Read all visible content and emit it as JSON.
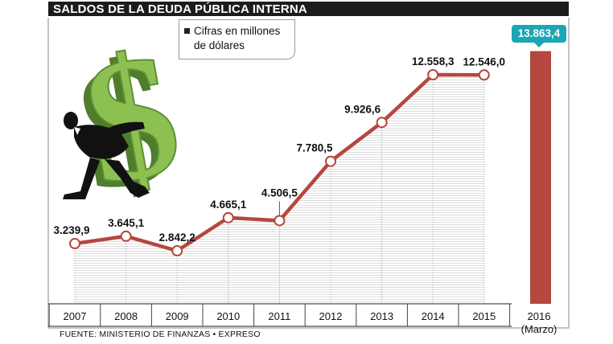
{
  "chart_data": {
    "type": "line",
    "title": "SALDOS DE LA DEUDA PÚBLICA INTERNA",
    "legend": "Cifras en millones de dólares",
    "source": "FUENTE: MINISTERIO DE FINANZAS  •  EXPRESO",
    "categories": [
      "2007",
      "2008",
      "2009",
      "2010",
      "2011",
      "2012",
      "2013",
      "2014",
      "2015"
    ],
    "values": [
      3239.9,
      3645.1,
      2842.2,
      4665.1,
      4506.5,
      7780.5,
      9926.6,
      12558.3,
      12546.0
    ],
    "value_labels": [
      "3.239,9",
      "3.645,1",
      "2.842,2",
      "4.665,1",
      "4.506,5",
      "7.780,5",
      "9.926,6",
      "12.558,3",
      "12.546,0"
    ],
    "highlight": {
      "category": "2016",
      "category_note": "(Marzo)",
      "value": 13863.4,
      "value_label": "13.863,4",
      "mark": "bar"
    },
    "colors": {
      "line": "#b5473e",
      "bar": "#b5473e",
      "badge": "#1aa6b5",
      "dollar_sign": "#8cc152"
    }
  }
}
